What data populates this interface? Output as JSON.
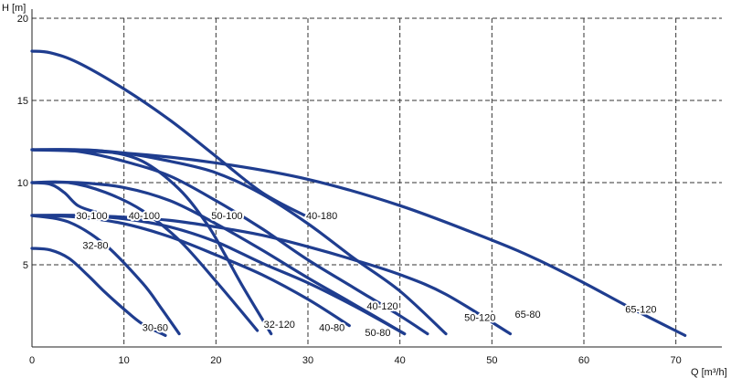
{
  "chart_data": {
    "type": "line",
    "xlabel": "Q [m³/h]",
    "ylabel": "H [m]",
    "xlim": [
      0,
      75
    ],
    "ylim": [
      0,
      20
    ],
    "x_ticks": [
      "0",
      "10",
      "20",
      "30",
      "40",
      "50",
      "60",
      "70"
    ],
    "y_ticks": [
      "5",
      "10",
      "15",
      "20"
    ],
    "grid": true,
    "line_color": "#1f3d8f",
    "series": [
      {
        "name": "30-60",
        "x": [
          0,
          2,
          4,
          6,
          8,
          10,
          12,
          14.5
        ],
        "y": [
          6.0,
          5.9,
          5.4,
          4.4,
          3.3,
          2.3,
          1.4,
          0.7
        ]
      },
      {
        "name": "32-80",
        "x": [
          0,
          4,
          8,
          12,
          14,
          16
        ],
        "y": [
          8.0,
          7.6,
          6.2,
          3.9,
          2.4,
          0.8
        ]
      },
      {
        "name": "30-100",
        "x": [
          0,
          2,
          3.5,
          5,
          7,
          8
        ],
        "y": [
          10.0,
          9.9,
          9.4,
          8.6,
          8.2,
          8.1
        ]
      },
      {
        "name": "40-100",
        "x": [
          0,
          4,
          8,
          12,
          16,
          20,
          24.5
        ],
        "y": [
          10.0,
          10.0,
          9.4,
          8.3,
          6.5,
          4.0,
          1.0
        ]
      },
      {
        "name": "32-120",
        "x": [
          0,
          4,
          8,
          12,
          16,
          19,
          21,
          23,
          26
        ],
        "y": [
          12.0,
          12.0,
          11.9,
          11.3,
          9.6,
          7.5,
          5.6,
          3.6,
          0.8
        ]
      },
      {
        "name": "40-80",
        "x": [
          0,
          5,
          10,
          15,
          20,
          25,
          30,
          34.5
        ],
        "y": [
          8.0,
          7.9,
          7.5,
          6.7,
          5.6,
          4.4,
          2.9,
          1.3
        ]
      },
      {
        "name": "50-80",
        "x": [
          0,
          5,
          10,
          15,
          20,
          25,
          30,
          35,
          40.5
        ],
        "y": [
          8.0,
          8.0,
          7.8,
          7.3,
          6.4,
          5.1,
          3.9,
          2.5,
          0.8
        ]
      },
      {
        "name": "50-100",
        "x": [
          0,
          5,
          10,
          15,
          20,
          25,
          30,
          35,
          40.5
        ],
        "y": [
          10.0,
          10.0,
          9.7,
          8.9,
          7.5,
          5.9,
          4.2,
          2.6,
          0.8
        ]
      },
      {
        "name": "40-120",
        "x": [
          0,
          5,
          10,
          15,
          20,
          25,
          30,
          35,
          40,
          43
        ],
        "y": [
          12.0,
          11.9,
          11.3,
          10.4,
          8.9,
          7.2,
          5.3,
          3.6,
          1.9,
          0.8
        ]
      },
      {
        "name": "40-180",
        "x": [
          0,
          2,
          5,
          10,
          15,
          20,
          25,
          30
        ],
        "y": [
          18.0,
          17.9,
          17.3,
          15.7,
          13.8,
          11.6,
          9.4,
          7.9
        ]
      },
      {
        "name": "50-120",
        "x": [
          0,
          5,
          10,
          15,
          20,
          25,
          30,
          35,
          40,
          45
        ],
        "y": [
          12.0,
          12.0,
          11.8,
          11.3,
          10.6,
          9.3,
          7.5,
          5.4,
          3.4,
          0.8
        ]
      },
      {
        "name": "65-80",
        "x": [
          0,
          5,
          10,
          15,
          20,
          25,
          30,
          35,
          40,
          45,
          52
        ],
        "y": [
          8.0,
          8.0,
          7.9,
          7.7,
          7.3,
          6.8,
          6.1,
          5.3,
          4.4,
          3.2,
          0.8
        ]
      },
      {
        "name": "65-120",
        "x": [
          0,
          10,
          20,
          30,
          40,
          50,
          55,
          60,
          65,
          71
        ],
        "y": [
          12.0,
          11.8,
          11.2,
          10.2,
          8.6,
          6.5,
          5.3,
          3.9,
          2.4,
          0.7
        ]
      }
    ],
    "labels": [
      {
        "text": "30-100",
        "x": 4.8,
        "y": 8.0
      },
      {
        "text": "40-100",
        "x": 10.5,
        "y": 8.0
      },
      {
        "text": "50-100",
        "x": 19.5,
        "y": 8.0
      },
      {
        "text": "40-180",
        "x": 29.8,
        "y": 8.0
      },
      {
        "text": "32-80",
        "x": 5.5,
        "y": 6.2
      },
      {
        "text": "30-60",
        "x": 12.0,
        "y": 1.2
      },
      {
        "text": "32-120",
        "x": 25.2,
        "y": 1.4
      },
      {
        "text": "40-80",
        "x": 31.2,
        "y": 1.2
      },
      {
        "text": "50-80",
        "x": 36.2,
        "y": 0.9
      },
      {
        "text": "40-120",
        "x": 36.4,
        "y": 2.5
      },
      {
        "text": "50-120",
        "x": 47.0,
        "y": 1.8
      },
      {
        "text": "65-80",
        "x": 52.5,
        "y": 2.0
      },
      {
        "text": "65-120",
        "x": 64.5,
        "y": 2.3
      }
    ]
  }
}
